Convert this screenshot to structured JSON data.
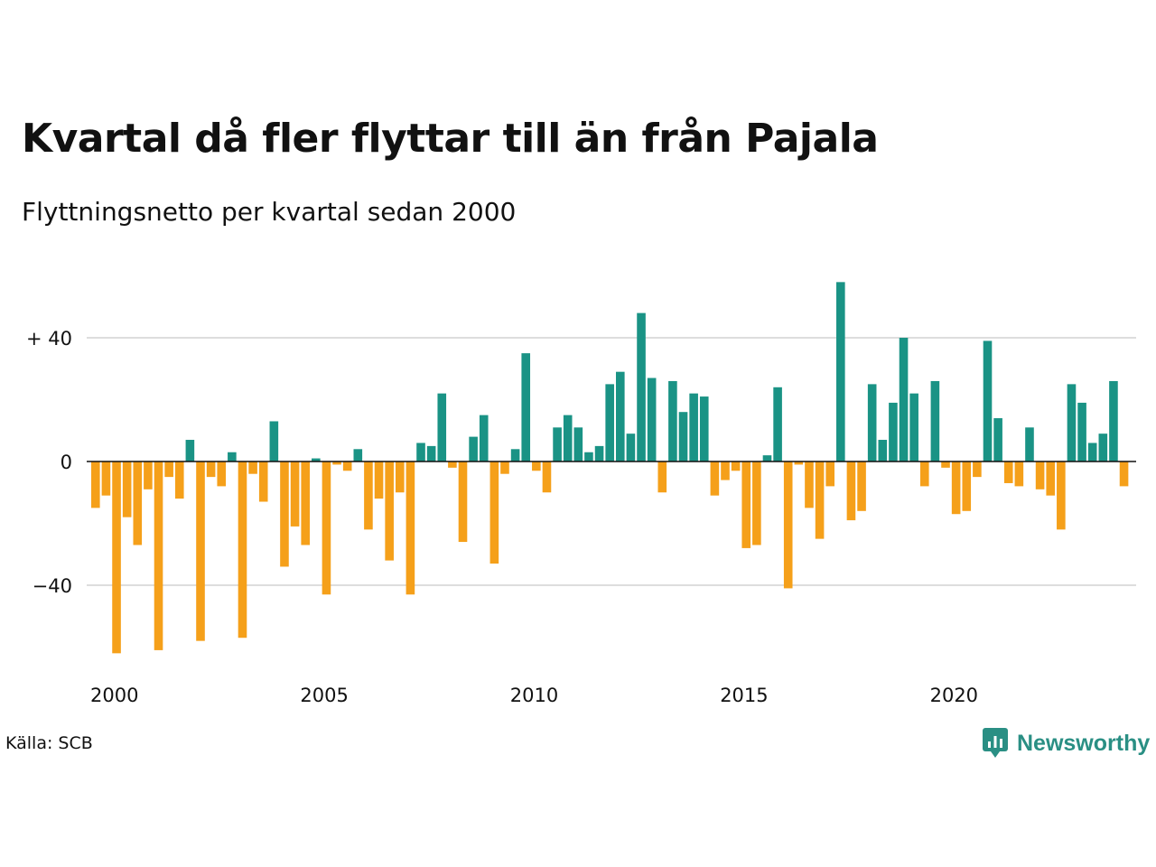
{
  "title": "Kvartal då fler flyttar till än från Pajala",
  "subtitle": "Flyttningsnetto per kvartal sedan 2000",
  "source": "Källa: SCB",
  "brand": {
    "name": "Newsworthy",
    "icon": "newsworthy-logo-icon"
  },
  "colors": {
    "positive": "#1a9385",
    "negative": "#f5a01a",
    "grid": "#dddddd",
    "zero_line": "#111111"
  },
  "chart_data": {
    "type": "bar",
    "title": "Kvartal då fler flyttar till än från Pajala",
    "subtitle": "Flyttningsnetto per kvartal sedan 2000",
    "xlabel": "",
    "ylabel": "",
    "x_start": "2000 Q1",
    "x_ticks": [
      "2000",
      "2005",
      "2010",
      "2015",
      "2020"
    ],
    "y_ticks": [
      {
        "value": 40,
        "label": "+ 40"
      },
      {
        "value": 0,
        "label": "0"
      },
      {
        "value": -40,
        "label": "−40"
      }
    ],
    "ylim": [
      -63,
      58
    ],
    "grid": true,
    "values": [
      -15,
      -11,
      -62,
      -18,
      -27,
      -9,
      -61,
      -5,
      -12,
      7,
      -58,
      -5,
      -8,
      3,
      -57,
      -4,
      -13,
      13,
      -34,
      -21,
      -27,
      1,
      -43,
      -1,
      -3,
      4,
      -22,
      -12,
      -32,
      -10,
      -43,
      6,
      5,
      22,
      -2,
      -26,
      8,
      15,
      -33,
      -4,
      4,
      35,
      -3,
      -10,
      11,
      15,
      11,
      3,
      5,
      25,
      29,
      9,
      48,
      27,
      -10,
      26,
      16,
      22,
      21,
      -11,
      -6,
      -3,
      -28,
      -27,
      2,
      24,
      -41,
      -1,
      -15,
      -25,
      -8,
      58,
      -19,
      -16,
      25,
      7,
      19,
      40,
      22,
      -8,
      26,
      -2,
      -17,
      -16,
      -5,
      39,
      14,
      -7,
      -8,
      11,
      -9,
      -11,
      -22,
      25,
      19,
      6,
      9,
      26,
      -8
    ]
  }
}
